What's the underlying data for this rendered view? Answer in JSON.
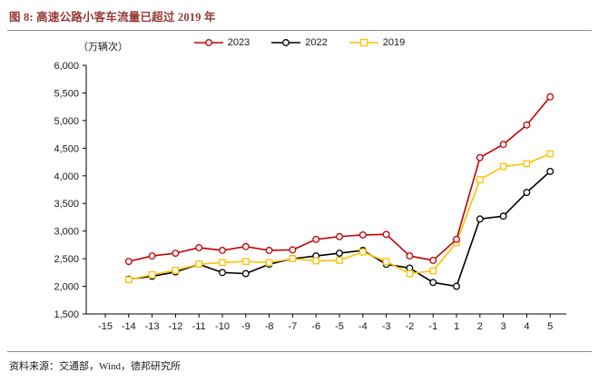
{
  "header": {
    "title": "图 8: 高速公路小客车流量已超过 2019 年"
  },
  "footer": {
    "source": "资料来源：交通部，Wind，德邦研究所"
  },
  "chart_data": {
    "type": "line",
    "title": "高速公路小客车流量已超过 2019 年",
    "unit_label": "（万辆次）",
    "xlabel": "",
    "ylabel": "万辆次",
    "categories": [
      "-15",
      "-14",
      "-13",
      "-12",
      "-11",
      "-10",
      "-9",
      "-8",
      "-7",
      "-6",
      "-5",
      "-4",
      "-3",
      "-2",
      "-1",
      "1",
      "2",
      "3",
      "4",
      "5"
    ],
    "ylim": [
      1500,
      6000
    ],
    "ytick_step": 500,
    "grid": false,
    "legend_position": "top",
    "axis_color": "#000000",
    "text_color": "#1a1a1a",
    "series": [
      {
        "name": "2023",
        "color": "#C00000",
        "marker": "circle",
        "values": [
          null,
          2450,
          2550,
          2600,
          2700,
          2650,
          2720,
          2650,
          2660,
          2850,
          2900,
          2930,
          2940,
          2550,
          2470,
          2850,
          4330,
          4570,
          4920,
          5430
        ]
      },
      {
        "name": "2022",
        "color": "#000000",
        "marker": "circle",
        "values": [
          null,
          2130,
          2180,
          2260,
          2400,
          2250,
          2230,
          2400,
          2500,
          2550,
          2600,
          2650,
          2400,
          2330,
          2070,
          2000,
          3220,
          3270,
          3700,
          4080
        ]
      },
      {
        "name": "2019",
        "color": "#FFC000",
        "marker": "square",
        "values": [
          null,
          2120,
          2210,
          2290,
          2400,
          2430,
          2450,
          2430,
          2500,
          2460,
          2470,
          2620,
          2450,
          2230,
          2280,
          2790,
          3930,
          4170,
          4220,
          4400
        ]
      }
    ]
  }
}
